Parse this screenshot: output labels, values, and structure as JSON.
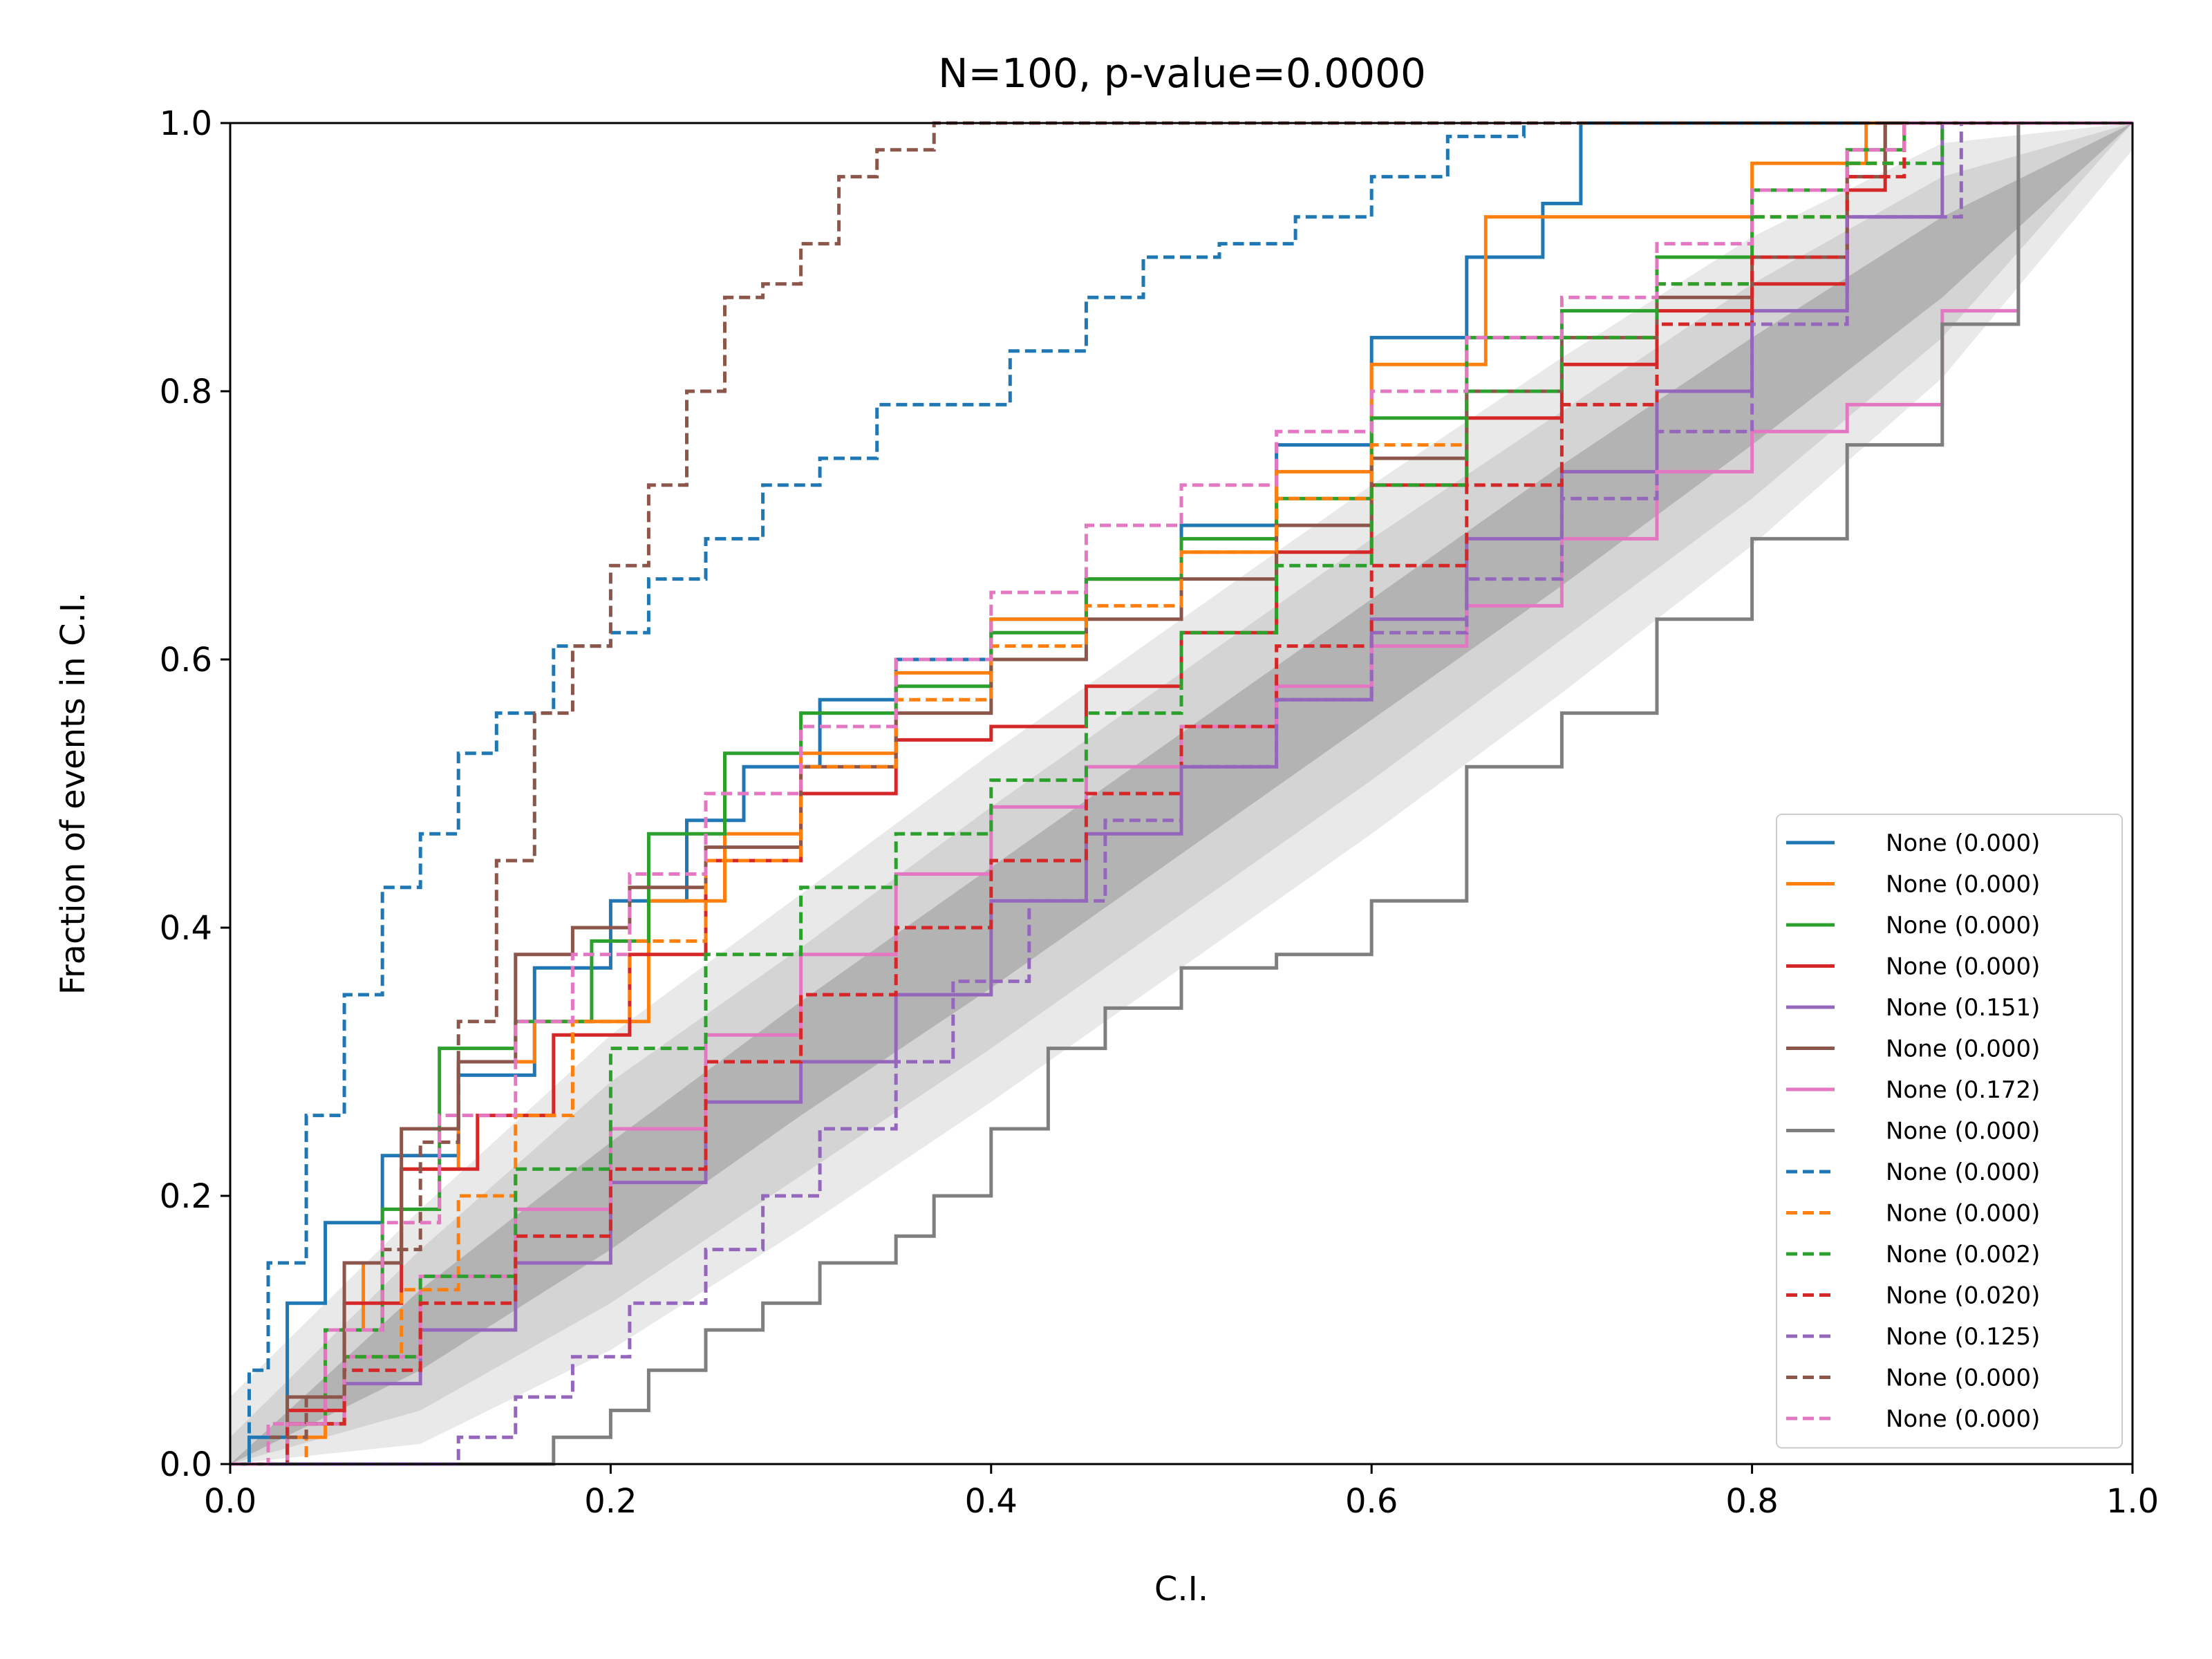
{
  "chart_data": {
    "type": "line",
    "title": "N=100, p-value=0.0000",
    "xlabel": "C.I.",
    "ylabel": "Fraction of events in C.I.",
    "xlim": [
      0,
      1
    ],
    "ylim": [
      0,
      1
    ],
    "x_ticks": [
      "0.0",
      "0.2",
      "0.4",
      "0.6",
      "0.8",
      "1.0"
    ],
    "y_ticks": [
      "0.0",
      "0.2",
      "0.4",
      "0.6",
      "0.8",
      "1.0"
    ],
    "grid": false,
    "legend_position": "lower-right",
    "confidence_bands": [
      {
        "level": "inner",
        "color": "#b3b3b3",
        "x": [
          0,
          0.1,
          0.2,
          0.3,
          0.4,
          0.5,
          0.6,
          0.7,
          0.8,
          0.9,
          1.0
        ],
        "lower": [
          0,
          0.07,
          0.16,
          0.26,
          0.355,
          0.455,
          0.555,
          0.655,
          0.76,
          0.87,
          1.0
        ],
        "upper": [
          0,
          0.13,
          0.24,
          0.345,
          0.445,
          0.545,
          0.645,
          0.745,
          0.84,
          0.93,
          1.0
        ]
      },
      {
        "level": "middle",
        "color": "#d4d4d4",
        "x": [
          0,
          0.1,
          0.2,
          0.3,
          0.4,
          0.5,
          0.6,
          0.7,
          0.8,
          0.9,
          1.0
        ],
        "lower": [
          0,
          0.04,
          0.12,
          0.215,
          0.31,
          0.41,
          0.51,
          0.615,
          0.72,
          0.84,
          1.0
        ],
        "upper": [
          0.02,
          0.16,
          0.285,
          0.385,
          0.49,
          0.59,
          0.69,
          0.785,
          0.88,
          0.96,
          1.0
        ]
      },
      {
        "level": "outer",
        "color": "#e9e9e9",
        "x": [
          0,
          0.1,
          0.2,
          0.3,
          0.4,
          0.5,
          0.6,
          0.7,
          0.8,
          0.9,
          1.0
        ],
        "lower": [
          0,
          0.015,
          0.085,
          0.175,
          0.27,
          0.37,
          0.47,
          0.575,
          0.685,
          0.81,
          0.98
        ],
        "upper": [
          0.05,
          0.19,
          0.32,
          0.425,
          0.53,
          0.63,
          0.73,
          0.825,
          0.915,
          0.985,
          1.0
        ]
      }
    ],
    "series": [
      {
        "name": "None (0.000)",
        "color": "#1f77b4",
        "dashed": false,
        "x": [
          0,
          0.01,
          0.03,
          0.05,
          0.08,
          0.12,
          0.16,
          0.2,
          0.24,
          0.27,
          0.31,
          0.35,
          0.4,
          0.45,
          0.5,
          0.55,
          0.6,
          0.65,
          0.69,
          0.71
        ],
        "y": [
          0,
          0.02,
          0.12,
          0.18,
          0.23,
          0.29,
          0.37,
          0.42,
          0.48,
          0.52,
          0.57,
          0.6,
          0.63,
          0.66,
          0.7,
          0.76,
          0.84,
          0.9,
          0.94,
          1.0
        ]
      },
      {
        "name": "None (0.000)",
        "color": "#ff7f0e",
        "dashed": false,
        "x": [
          0,
          0.03,
          0.05,
          0.07,
          0.09,
          0.12,
          0.16,
          0.19,
          0.22,
          0.26,
          0.3,
          0.35,
          0.4,
          0.45,
          0.5,
          0.55,
          0.6,
          0.66,
          0.73,
          0.8,
          0.86
        ],
        "y": [
          0,
          0.02,
          0.1,
          0.15,
          0.22,
          0.3,
          0.33,
          0.33,
          0.42,
          0.47,
          0.53,
          0.59,
          0.63,
          0.66,
          0.68,
          0.74,
          0.82,
          0.93,
          0.93,
          0.97,
          1.0
        ]
      },
      {
        "name": "None (0.000)",
        "color": "#2ca02c",
        "dashed": false,
        "x": [
          0,
          0.03,
          0.05,
          0.08,
          0.11,
          0.15,
          0.19,
          0.22,
          0.26,
          0.3,
          0.35,
          0.4,
          0.45,
          0.5,
          0.55,
          0.6,
          0.65,
          0.7,
          0.75,
          0.8,
          0.85,
          0.88
        ],
        "y": [
          0,
          0.03,
          0.1,
          0.19,
          0.31,
          0.33,
          0.39,
          0.47,
          0.53,
          0.56,
          0.58,
          0.62,
          0.66,
          0.69,
          0.72,
          0.78,
          0.84,
          0.86,
          0.9,
          0.95,
          0.98,
          1.0
        ]
      },
      {
        "name": "None (0.000)",
        "color": "#d62728",
        "dashed": false,
        "x": [
          0,
          0.03,
          0.06,
          0.09,
          0.13,
          0.17,
          0.21,
          0.25,
          0.3,
          0.35,
          0.4,
          0.45,
          0.5,
          0.55,
          0.6,
          0.65,
          0.7,
          0.75,
          0.8,
          0.85,
          0.87
        ],
        "y": [
          0,
          0.04,
          0.12,
          0.22,
          0.26,
          0.32,
          0.38,
          0.45,
          0.5,
          0.54,
          0.55,
          0.58,
          0.62,
          0.68,
          0.73,
          0.78,
          0.82,
          0.86,
          0.88,
          0.95,
          1.0
        ]
      },
      {
        "name": "None (0.151)",
        "color": "#9467bd",
        "dashed": false,
        "x": [
          0,
          0.03,
          0.06,
          0.1,
          0.15,
          0.2,
          0.25,
          0.3,
          0.35,
          0.4,
          0.45,
          0.5,
          0.55,
          0.6,
          0.65,
          0.7,
          0.75,
          0.8,
          0.85,
          0.9
        ],
        "y": [
          0,
          0.03,
          0.06,
          0.1,
          0.15,
          0.21,
          0.27,
          0.3,
          0.35,
          0.42,
          0.47,
          0.52,
          0.57,
          0.63,
          0.69,
          0.74,
          0.8,
          0.86,
          0.93,
          1.0
        ]
      },
      {
        "name": "None (0.000)",
        "color": "#8c564b",
        "dashed": false,
        "x": [
          0,
          0.03,
          0.06,
          0.09,
          0.12,
          0.15,
          0.18,
          0.21,
          0.25,
          0.3,
          0.35,
          0.4,
          0.45,
          0.5,
          0.55,
          0.6,
          0.65,
          0.7,
          0.75,
          0.8,
          0.85,
          0.87
        ],
        "y": [
          0,
          0.05,
          0.15,
          0.25,
          0.3,
          0.38,
          0.4,
          0.43,
          0.46,
          0.52,
          0.56,
          0.6,
          0.63,
          0.66,
          0.7,
          0.75,
          0.8,
          0.84,
          0.87,
          0.9,
          0.96,
          1.0
        ]
      },
      {
        "name": "None (0.172)",
        "color": "#e377c2",
        "dashed": false,
        "x": [
          0,
          0.03,
          0.06,
          0.1,
          0.15,
          0.2,
          0.25,
          0.3,
          0.35,
          0.4,
          0.45,
          0.5,
          0.55,
          0.6,
          0.65,
          0.7,
          0.75,
          0.8,
          0.85,
          0.9,
          0.94
        ],
        "y": [
          0,
          0.03,
          0.08,
          0.14,
          0.19,
          0.25,
          0.32,
          0.38,
          0.44,
          0.49,
          0.52,
          0.55,
          0.58,
          0.61,
          0.64,
          0.69,
          0.74,
          0.77,
          0.79,
          0.86,
          1.0
        ]
      },
      {
        "name": "None (0.000)",
        "color": "#7f7f7f",
        "dashed": false,
        "x": [
          0,
          0.14,
          0.17,
          0.2,
          0.22,
          0.25,
          0.28,
          0.31,
          0.35,
          0.37,
          0.4,
          0.43,
          0.46,
          0.5,
          0.55,
          0.6,
          0.65,
          0.7,
          0.75,
          0.8,
          0.85,
          0.9,
          0.94
        ],
        "y": [
          0,
          0,
          0.02,
          0.04,
          0.07,
          0.1,
          0.12,
          0.15,
          0.17,
          0.2,
          0.25,
          0.31,
          0.34,
          0.37,
          0.38,
          0.42,
          0.52,
          0.56,
          0.63,
          0.69,
          0.76,
          0.85,
          1.0
        ]
      },
      {
        "name": "None (0.000)",
        "color": "#1f77b4",
        "dashed": true,
        "x": [
          0,
          0.01,
          0.02,
          0.04,
          0.06,
          0.08,
          0.1,
          0.12,
          0.14,
          0.17,
          0.2,
          0.22,
          0.25,
          0.28,
          0.31,
          0.34,
          0.37,
          0.41,
          0.45,
          0.48,
          0.52,
          0.56,
          0.6,
          0.64,
          0.68
        ],
        "y": [
          0,
          0.07,
          0.15,
          0.26,
          0.35,
          0.43,
          0.47,
          0.53,
          0.56,
          0.61,
          0.62,
          0.66,
          0.69,
          0.73,
          0.75,
          0.79,
          0.79,
          0.83,
          0.87,
          0.9,
          0.91,
          0.93,
          0.96,
          0.99,
          1.0
        ]
      },
      {
        "name": "None (0.000)",
        "color": "#ff7f0e",
        "dashed": true,
        "x": [
          0,
          0.04,
          0.06,
          0.09,
          0.12,
          0.15,
          0.18,
          0.21,
          0.25,
          0.3,
          0.35,
          0.4,
          0.45,
          0.5,
          0.55,
          0.6,
          0.65,
          0.7,
          0.75,
          0.8,
          0.85,
          0.88
        ],
        "y": [
          0,
          0.03,
          0.08,
          0.13,
          0.2,
          0.26,
          0.33,
          0.39,
          0.45,
          0.52,
          0.57,
          0.61,
          0.64,
          0.68,
          0.72,
          0.76,
          0.8,
          0.84,
          0.88,
          0.93,
          0.97,
          1.0
        ]
      },
      {
        "name": "None (0.002)",
        "color": "#2ca02c",
        "dashed": true,
        "x": [
          0,
          0.03,
          0.06,
          0.1,
          0.15,
          0.2,
          0.25,
          0.3,
          0.35,
          0.4,
          0.45,
          0.5,
          0.55,
          0.6,
          0.65,
          0.7,
          0.75,
          0.8,
          0.85,
          0.9
        ],
        "y": [
          0,
          0.03,
          0.08,
          0.14,
          0.22,
          0.31,
          0.38,
          0.43,
          0.47,
          0.51,
          0.56,
          0.62,
          0.67,
          0.73,
          0.8,
          0.84,
          0.88,
          0.93,
          0.97,
          1.0
        ]
      },
      {
        "name": "None (0.020)",
        "color": "#d62728",
        "dashed": true,
        "x": [
          0,
          0.03,
          0.06,
          0.1,
          0.15,
          0.2,
          0.25,
          0.3,
          0.35,
          0.4,
          0.45,
          0.5,
          0.55,
          0.6,
          0.65,
          0.7,
          0.75,
          0.8,
          0.85,
          0.88
        ],
        "y": [
          0,
          0.03,
          0.07,
          0.12,
          0.17,
          0.22,
          0.3,
          0.35,
          0.4,
          0.45,
          0.5,
          0.55,
          0.61,
          0.67,
          0.73,
          0.79,
          0.85,
          0.9,
          0.96,
          1.0
        ]
      },
      {
        "name": "None (0.125)",
        "color": "#9467bd",
        "dashed": true,
        "x": [
          0,
          0.1,
          0.12,
          0.15,
          0.18,
          0.21,
          0.25,
          0.28,
          0.31,
          0.35,
          0.38,
          0.42,
          0.46,
          0.5,
          0.55,
          0.6,
          0.65,
          0.7,
          0.75,
          0.8,
          0.85,
          0.91
        ],
        "y": [
          0,
          0,
          0.02,
          0.05,
          0.08,
          0.12,
          0.16,
          0.2,
          0.25,
          0.3,
          0.36,
          0.42,
          0.48,
          0.52,
          0.57,
          0.62,
          0.66,
          0.72,
          0.77,
          0.85,
          0.93,
          1.0
        ]
      },
      {
        "name": "None (0.000)",
        "color": "#8c564b",
        "dashed": true,
        "x": [
          0,
          0.02,
          0.04,
          0.06,
          0.08,
          0.1,
          0.12,
          0.14,
          0.16,
          0.18,
          0.2,
          0.22,
          0.24,
          0.26,
          0.28,
          0.3,
          0.32,
          0.34,
          0.37
        ],
        "y": [
          0,
          0.02,
          0.05,
          0.1,
          0.16,
          0.24,
          0.33,
          0.45,
          0.56,
          0.61,
          0.67,
          0.73,
          0.8,
          0.87,
          0.88,
          0.91,
          0.96,
          0.98,
          1.0
        ]
      },
      {
        "name": "None (0.000)",
        "color": "#e377c2",
        "dashed": true,
        "x": [
          0,
          0.02,
          0.05,
          0.08,
          0.11,
          0.15,
          0.18,
          0.21,
          0.25,
          0.3,
          0.35,
          0.4,
          0.45,
          0.5,
          0.55,
          0.6,
          0.65,
          0.7,
          0.75,
          0.8,
          0.85,
          0.88
        ],
        "y": [
          0,
          0.03,
          0.1,
          0.18,
          0.26,
          0.33,
          0.38,
          0.44,
          0.5,
          0.55,
          0.6,
          0.65,
          0.7,
          0.73,
          0.77,
          0.8,
          0.84,
          0.87,
          0.91,
          0.95,
          0.98,
          1.0
        ]
      }
    ]
  }
}
